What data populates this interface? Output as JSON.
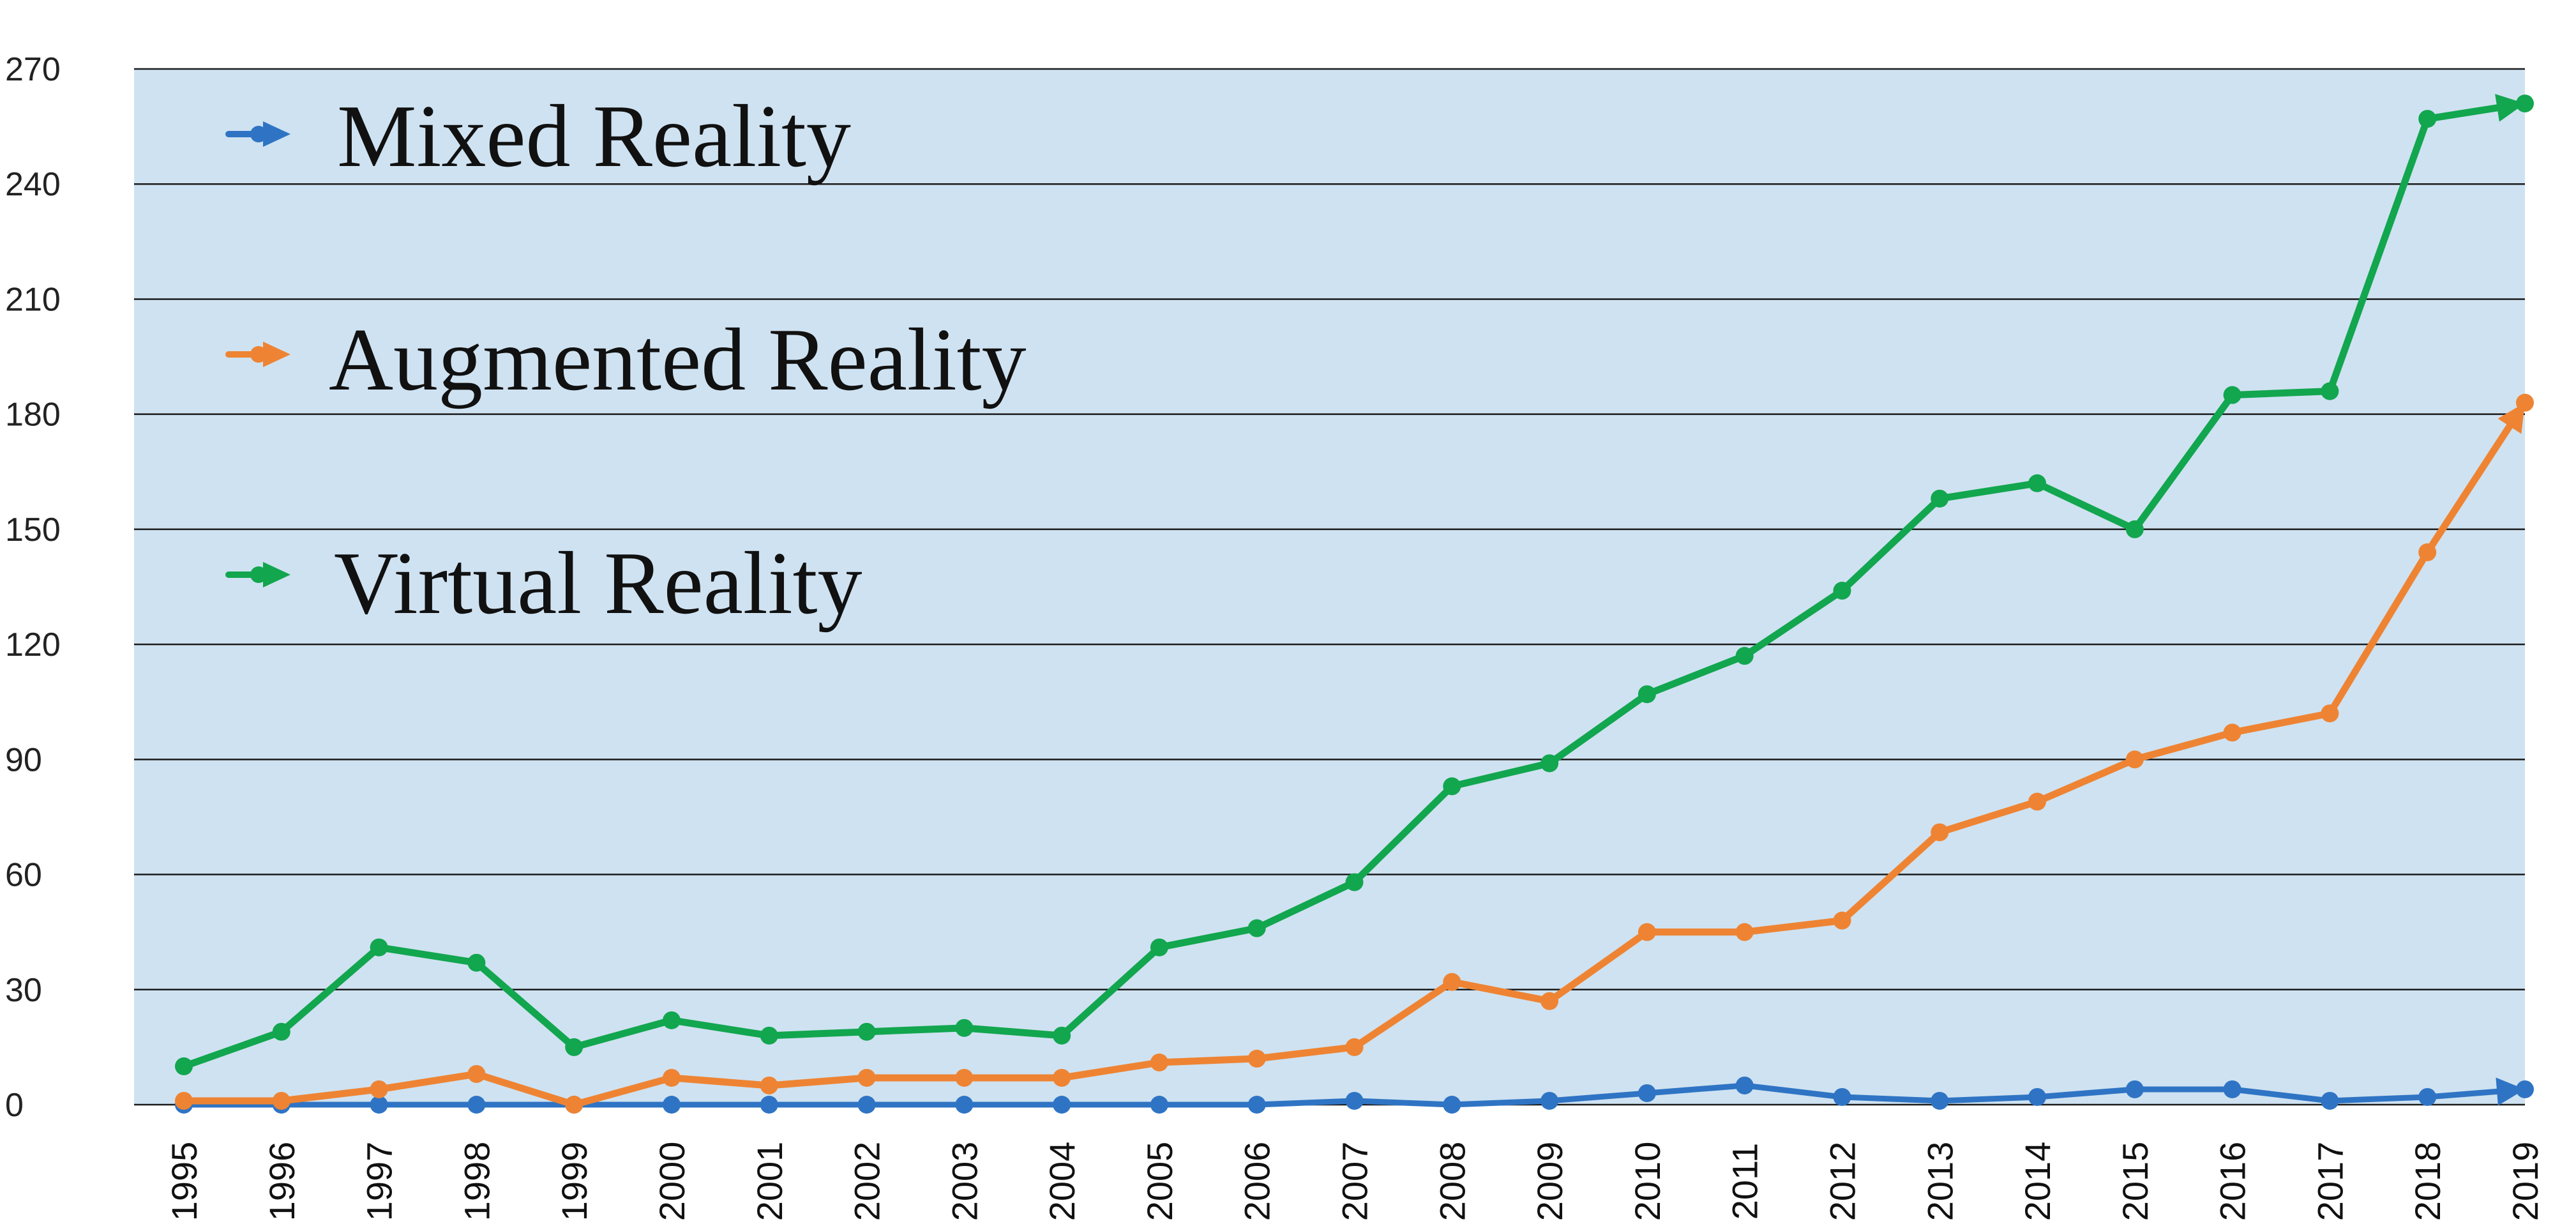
{
  "chart_data": {
    "type": "line",
    "title": "",
    "xlabel": "",
    "ylabel": "",
    "categories": [
      "1995",
      "1996",
      "1997",
      "1998",
      "1999",
      "2000",
      "2001",
      "2002",
      "2003",
      "2004",
      "2005",
      "2006",
      "2007",
      "2008",
      "2009",
      "2010",
      "2011",
      "2012",
      "2013",
      "2014",
      "2015",
      "2016",
      "2017",
      "2018",
      "2019"
    ],
    "ylim": [
      0,
      270
    ],
    "yticks": [
      "0",
      "30",
      "60",
      "90",
      "120",
      "150",
      "180",
      "210",
      "240",
      "270"
    ],
    "grid": true,
    "legend_position": "top-left",
    "plot_background": "#cfe2f1",
    "series": [
      {
        "name": "Mixed Reality",
        "color": "#2f74c4",
        "values": [
          0,
          0,
          0,
          0,
          0,
          0,
          0,
          0,
          0,
          0,
          0,
          0,
          1,
          0,
          1,
          3,
          5,
          2,
          1,
          2,
          4,
          4,
          1,
          2,
          4
        ]
      },
      {
        "name": "Augmented Reality",
        "color": "#ee8433",
        "values": [
          1,
          1,
          4,
          8,
          0,
          7,
          5,
          7,
          7,
          7,
          11,
          12,
          15,
          32,
          27,
          45,
          45,
          48,
          71,
          79,
          90,
          97,
          102,
          144,
          183
        ]
      },
      {
        "name": "Virtual Reality",
        "color": "#12a64f",
        "values": [
          10,
          19,
          41,
          37,
          15,
          22,
          18,
          19,
          20,
          18,
          41,
          46,
          58,
          83,
          89,
          107,
          117,
          134,
          158,
          162,
          150,
          185,
          186,
          257,
          261
        ]
      }
    ]
  }
}
